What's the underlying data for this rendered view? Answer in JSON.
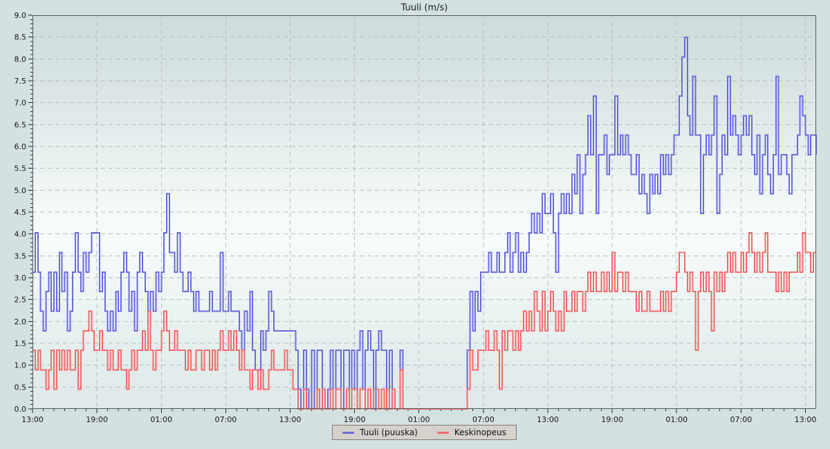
{
  "title": "Tuuli (m/s)",
  "colors": {
    "background": "#d4e1e1",
    "plot_border": "#53585a",
    "grid": "#b4bcbc",
    "tick": "#222222",
    "tick_text": "#141414",
    "gust_line": "#6a6ade",
    "avg_line": "#f26a6a",
    "legend_bg": "#d5d1cb",
    "legend_border": "#7c7c78"
  },
  "axes": {
    "y_min": 0,
    "y_max": 9,
    "y_major_step": 0.5,
    "y_minor_step": 0.1,
    "y_tick_labels": [
      "0.0",
      "0.5",
      "1.0",
      "1.5",
      "2.0",
      "2.5",
      "3.0",
      "3.5",
      "4.0",
      "4.5",
      "5.0",
      "5.5",
      "6.0",
      "6.5",
      "7.0",
      "7.5",
      "8.0",
      "8.5",
      "9.0"
    ],
    "x_span_hours": 73,
    "x_major_step_hours": 6,
    "x_minor_step_hours": 1,
    "x_tick_labels": [
      "13:00",
      "19:00",
      "01:00",
      "07:00",
      "13:00",
      "19:00",
      "01:00",
      "07:00",
      "13:00",
      "19:00",
      "01:00",
      "07:00",
      "13:00"
    ]
  },
  "legend": {
    "items": [
      {
        "label": "Tuuli (puuska)",
        "color": "#6a6ade"
      },
      {
        "label": "Keskinopeus",
        "color": "#f26a6a"
      }
    ]
  },
  "chart_data": {
    "type": "line",
    "step": true,
    "title": "Tuuli (m/s)",
    "ylabel": "m/s",
    "ylim": [
      0,
      9
    ],
    "grid": true,
    "legend_position": "bottom-center",
    "x_start": "13:00",
    "span_hours": 73,
    "interval_minutes": 15,
    "x_tick_labels": [
      "13:00",
      "19:00",
      "01:00",
      "07:00",
      "13:00",
      "19:00",
      "01:00",
      "07:00",
      "13:00",
      "19:00",
      "01:00",
      "07:00",
      "13:00"
    ],
    "unit_note": "wind speeds quantized to integer mph steps; m/s = mph * 0.447",
    "mph_to_ms": 0.447,
    "series": [
      {
        "name": "Tuuli (puuska)",
        "color": "#6a6ade",
        "values_mph": [
          7,
          9,
          7,
          5,
          4,
          6,
          7,
          5,
          7,
          5,
          8,
          6,
          7,
          4,
          5,
          7,
          9,
          7,
          6,
          8,
          7,
          8,
          9,
          9,
          9,
          6,
          7,
          5,
          4,
          5,
          4,
          6,
          5,
          7,
          8,
          7,
          5,
          6,
          4,
          7,
          8,
          7,
          6,
          5,
          6,
          5,
          7,
          6,
          7,
          9,
          11,
          8,
          8,
          7,
          9,
          7,
          6,
          6,
          7,
          6,
          5,
          6,
          5,
          5,
          5,
          5,
          6,
          5,
          5,
          5,
          8,
          5,
          5,
          6,
          5,
          5,
          5,
          4,
          3,
          5,
          4,
          6,
          3,
          2,
          2,
          4,
          3,
          4,
          6,
          5,
          4,
          4,
          4,
          4,
          4,
          4,
          4,
          4,
          3,
          1,
          0,
          3,
          1,
          0,
          3,
          0,
          3,
          3,
          1,
          0,
          1,
          3,
          0,
          3,
          3,
          0,
          3,
          3,
          0,
          3,
          1,
          3,
          4,
          1,
          3,
          4,
          3,
          0,
          3,
          4,
          3,
          3,
          0,
          3,
          1,
          0,
          0,
          3,
          0,
          0,
          0,
          0,
          0,
          0,
          0,
          0,
          0,
          0,
          0,
          0,
          0,
          0,
          0,
          0,
          0,
          0,
          0,
          0,
          0,
          0,
          0,
          0,
          3,
          6,
          4,
          6,
          5,
          7,
          7,
          7,
          8,
          7,
          7,
          8,
          7,
          7,
          8,
          9,
          7,
          8,
          9,
          7,
          8,
          7,
          8,
          9,
          10,
          9,
          10,
          9,
          11,
          10,
          10,
          11,
          9,
          7,
          10,
          11,
          10,
          11,
          10,
          12,
          11,
          13,
          10,
          12,
          13,
          15,
          13,
          16,
          10,
          13,
          13,
          14,
          12,
          13,
          13,
          16,
          13,
          14,
          13,
          14,
          13,
          12,
          12,
          13,
          11,
          12,
          11,
          10,
          12,
          11,
          12,
          11,
          13,
          12,
          13,
          12,
          13,
          14,
          14,
          16,
          18,
          19,
          15,
          14,
          17,
          14,
          14,
          10,
          13,
          14,
          13,
          14,
          16,
          10,
          12,
          14,
          13,
          17,
          14,
          15,
          14,
          13,
          14,
          15,
          14,
          15,
          13,
          12,
          14,
          11,
          13,
          14,
          12,
          11,
          13,
          17,
          12,
          13,
          13,
          12,
          11,
          13,
          13,
          14,
          16,
          15,
          14,
          13,
          14,
          14,
          13
        ]
      },
      {
        "name": "Keskinopeus",
        "color": "#f26a6a",
        "values_mph": [
          3,
          2,
          3,
          2,
          2,
          1,
          2,
          3,
          1,
          3,
          2,
          3,
          2,
          3,
          2,
          2,
          3,
          1,
          3,
          4,
          4,
          5,
          4,
          3,
          3,
          4,
          3,
          3,
          2,
          3,
          2,
          2,
          3,
          2,
          2,
          1,
          2,
          3,
          2,
          3,
          3,
          4,
          3,
          5,
          3,
          2,
          3,
          3,
          4,
          5,
          4,
          3,
          3,
          4,
          3,
          3,
          3,
          2,
          3,
          2,
          2,
          3,
          3,
          2,
          3,
          3,
          2,
          3,
          2,
          3,
          4,
          3,
          3,
          4,
          3,
          4,
          3,
          2,
          3,
          2,
          2,
          1,
          2,
          2,
          1,
          2,
          1,
          1,
          2,
          3,
          2,
          2,
          2,
          2,
          3,
          2,
          2,
          1,
          1,
          0,
          0,
          1,
          0,
          0,
          0,
          0,
          1,
          0,
          1,
          0,
          0,
          1,
          0,
          1,
          1,
          0,
          0,
          1,
          0,
          1,
          1,
          0,
          1,
          1,
          0,
          1,
          0,
          1,
          1,
          0,
          1,
          0,
          1,
          0,
          1,
          0,
          0,
          2,
          0,
          0,
          0,
          0,
          0,
          0,
          0,
          0,
          0,
          0,
          0,
          0,
          0,
          0,
          0,
          0,
          0,
          0,
          0,
          0,
          0,
          0,
          0,
          0,
          1,
          3,
          2,
          2,
          3,
          3,
          3,
          4,
          3,
          3,
          4,
          3,
          1,
          4,
          3,
          4,
          4,
          3,
          4,
          3,
          4,
          5,
          4,
          5,
          4,
          6,
          5,
          4,
          6,
          4,
          5,
          6,
          5,
          4,
          5,
          4,
          6,
          5,
          5,
          6,
          5,
          6,
          6,
          5,
          6,
          7,
          6,
          7,
          6,
          6,
          7,
          6,
          7,
          6,
          8,
          6,
          7,
          7,
          6,
          7,
          6,
          6,
          6,
          5,
          6,
          5,
          5,
          6,
          5,
          5,
          5,
          5,
          6,
          5,
          6,
          5,
          6,
          6,
          7,
          8,
          8,
          7,
          6,
          7,
          6,
          3,
          6,
          7,
          6,
          7,
          6,
          4,
          7,
          6,
          7,
          6,
          7,
          8,
          7,
          8,
          7,
          7,
          8,
          7,
          8,
          9,
          8,
          7,
          8,
          7,
          8,
          9,
          7,
          7,
          7,
          6,
          7,
          6,
          7,
          6,
          7,
          7,
          7,
          8,
          7,
          9,
          8,
          8,
          7,
          8,
          8
        ]
      }
    ]
  }
}
